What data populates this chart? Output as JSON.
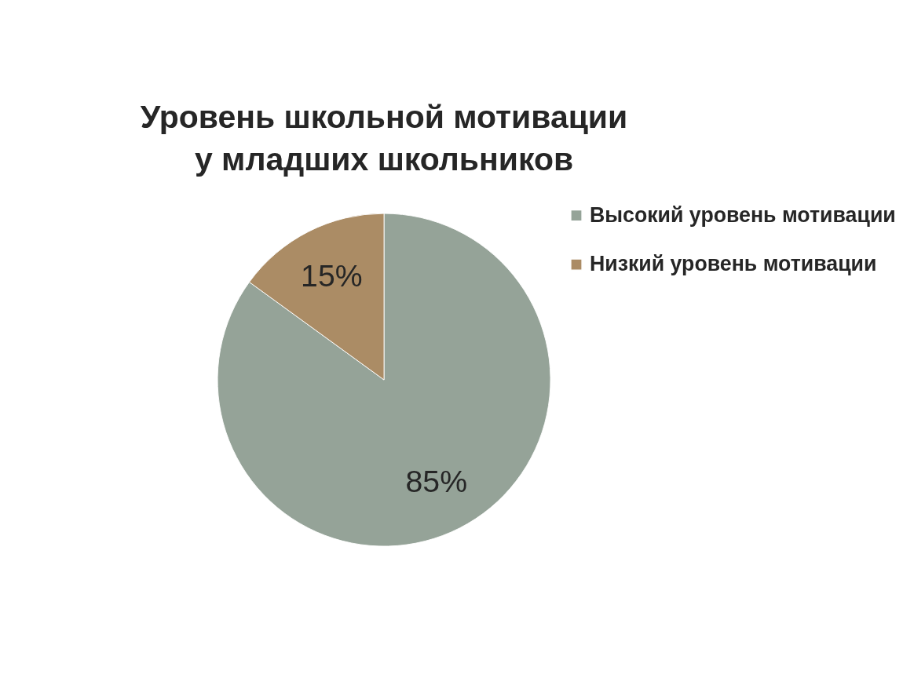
{
  "chart_data": {
    "type": "pie",
    "title": "Уровень школьной мотивации у младших школьников",
    "categories": [
      "Высокий уровень мотивации",
      "Низкий уровень мотивации"
    ],
    "values": [
      85,
      15
    ],
    "colors": [
      "#95a398",
      "#ab8c65"
    ],
    "value_labels": [
      "85%",
      "15%"
    ],
    "legend": "right"
  }
}
